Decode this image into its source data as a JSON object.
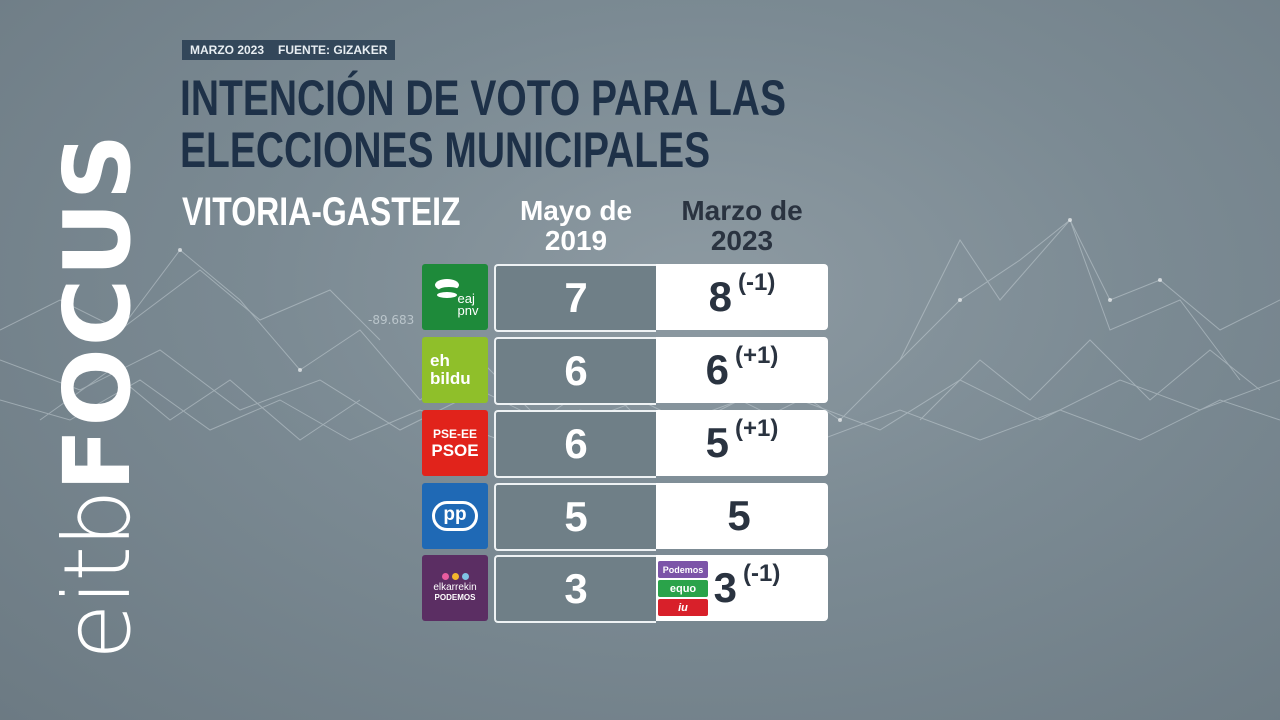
{
  "header": {
    "date": "MARZO 2023",
    "source": "FUENTE: GIZAKER",
    "title": "INTENCIÓN DE VOTO PARA LAS ELECCIONES MUNICIPALES",
    "subtitle": "VITORIA-GASTEIZ"
  },
  "columns": {
    "previous": "Mayo de 2019",
    "current": "Marzo de 2023"
  },
  "background_label": "-89.683",
  "channel_logo": {
    "part1": "eitb",
    "part2": "FOCUS"
  },
  "parties": [
    {
      "logo_line1": "eaj",
      "logo_line2": "pnv",
      "logo_color": "#1e8a3a",
      "icon": "pnv-leaf-icon",
      "may2019": "7",
      "mar2023": "8",
      "change": "(-1)"
    },
    {
      "logo_line1": "eh",
      "logo_line2": "bildu",
      "logo_color": "#8fbf2a",
      "icon": "bildu-logo",
      "may2019": "6",
      "mar2023": "6",
      "change": "(+1)"
    },
    {
      "logo_line1": "PSE-EE",
      "logo_line2": "PSOE",
      "logo_color": "#e1231b",
      "icon": "psoe-logo",
      "may2019": "6",
      "mar2023": "5",
      "change": "(+1)"
    },
    {
      "logo_line1": "pp",
      "logo_line2": "",
      "logo_color": "#1f69b5",
      "icon": "pp-logo",
      "may2019": "5",
      "mar2023": "5",
      "change": ""
    },
    {
      "logo_line1": "elkarrekin",
      "logo_line2": "PODEMOS",
      "logo_color": "#5b2e63",
      "icon": "elkarrekin-logo",
      "may2019": "3",
      "mar2023": "3",
      "change": "(-1)",
      "new_badges": [
        {
          "label": "Podemos",
          "color": "#7c54a8"
        },
        {
          "label": "equo",
          "color": "#2aa34a"
        },
        {
          "label": "iu",
          "color": "#d8202a"
        }
      ]
    }
  ]
}
